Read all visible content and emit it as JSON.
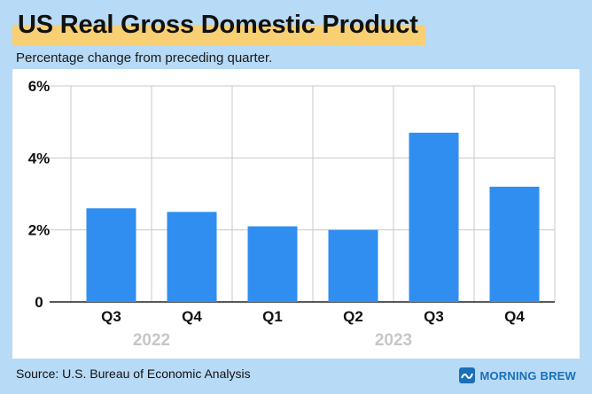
{
  "header": {
    "title": "US Real Gross Domestic Product",
    "subtitle": "Percentage change from preceding quarter."
  },
  "footer": {
    "source": "Source: U.S. Bureau of Economic Analysis",
    "brand": "MORNING BREW",
    "brand_icon": "morning-brew-logo-icon"
  },
  "colors": {
    "bar": "#2f8ef0",
    "highlight": "#f9cf73",
    "background": "#b7daf6",
    "grid": "#c8c8c8",
    "year_label": "#c7c7c7"
  },
  "chart_data": {
    "type": "bar",
    "title": "US Real Gross Domestic Product",
    "subtitle": "Percentage change from preceding quarter.",
    "categories": [
      "Q3",
      "Q4",
      "Q1",
      "Q2",
      "Q3",
      "Q4"
    ],
    "values": [
      2.6,
      2.5,
      2.1,
      2.0,
      4.7,
      3.2
    ],
    "years": [
      {
        "label": "2022",
        "start": 0,
        "end": 1
      },
      {
        "label": "2023",
        "start": 2,
        "end": 5
      }
    ],
    "yticks": [
      0,
      2,
      4,
      6
    ],
    "ytick_labels": [
      "0",
      "2%",
      "4%",
      "6%"
    ],
    "ylim": [
      0,
      6
    ],
    "xlabel": "",
    "ylabel": "",
    "grid": true,
    "legend": "none"
  }
}
